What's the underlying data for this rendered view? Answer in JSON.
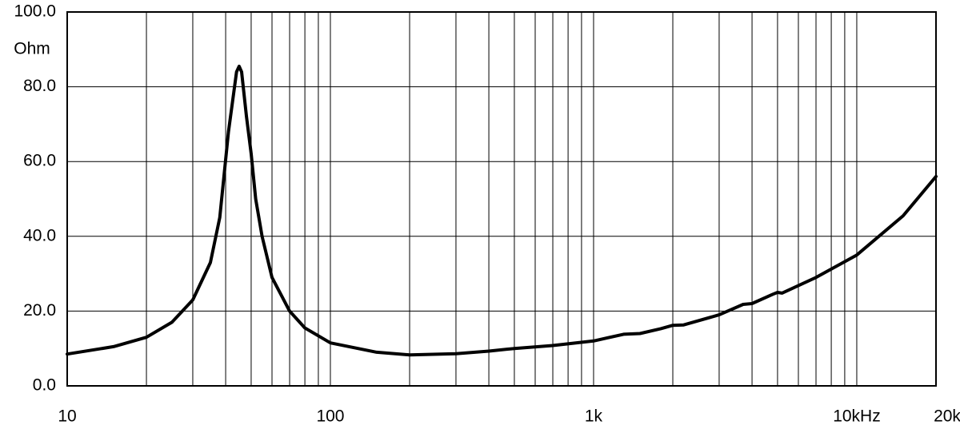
{
  "chart_data": {
    "type": "line",
    "y_label": "Ohm",
    "log_x": true,
    "grid": true,
    "xlim": [
      10,
      20000
    ],
    "ylim": [
      0,
      100
    ],
    "xticks": [
      10,
      100,
      {
        "value": 1000,
        "label": "1k"
      },
      {
        "value": 10000,
        "label": "10kHz"
      },
      {
        "value": 20000,
        "label": "20k"
      }
    ],
    "xminor": [
      20,
      30,
      40,
      50,
      60,
      70,
      80,
      90,
      200,
      300,
      400,
      500,
      600,
      700,
      800,
      900,
      2000,
      3000,
      4000,
      5000,
      6000,
      7000,
      8000,
      9000
    ],
    "yticks": [
      {
        "value": 0,
        "label": "0.0"
      },
      {
        "value": 20,
        "label": "20.0"
      },
      {
        "value": 40,
        "label": "40.0"
      },
      {
        "value": 60,
        "label": "60.0"
      },
      {
        "value": 80,
        "label": "80.0"
      },
      {
        "value": 100,
        "label": "100.0"
      }
    ],
    "series": [
      {
        "color": "#000000",
        "x": [
          10,
          15,
          20,
          25,
          30,
          35,
          38,
          41,
          44,
          45,
          46,
          48,
          50,
          52,
          55,
          60,
          70,
          80,
          100,
          150,
          200,
          300,
          400,
          500,
          700,
          1000,
          1300,
          1500,
          1800,
          2000,
          2200,
          3000,
          3700,
          4000,
          4800,
          5000,
          5200,
          7000,
          10000,
          15000,
          20000
        ],
        "values": [
          8.5,
          10.5,
          13,
          17,
          23,
          33,
          45,
          68,
          84,
          85.5,
          84,
          72,
          62,
          50,
          40,
          29,
          20,
          15.5,
          11.5,
          9,
          8.3,
          8.6,
          9.3,
          10,
          10.8,
          12,
          13.8,
          14,
          15.3,
          16.2,
          16.3,
          19,
          21.8,
          22,
          24.5,
          25,
          24.8,
          29,
          35,
          45.5,
          56
        ]
      }
    ]
  }
}
